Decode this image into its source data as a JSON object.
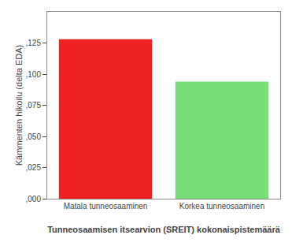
{
  "chart_data": {
    "type": "bar",
    "categories": [
      "Matala tunneosaaminen",
      "Korkea tunneosaaminen"
    ],
    "values": [
      0.128,
      0.094
    ],
    "colors": [
      "#ee2222",
      "#77dd77"
    ],
    "xlabel": "Tunneosaamisen itsearvion (SREIT) kokonaispistemäärä",
    "ylabel": "Kämmenten hikoilu (delta EDA)",
    "ylim": [
      0,
      0.15
    ],
    "yticks": [
      {
        "value": 0.0,
        "label": ",000"
      },
      {
        "value": 0.025,
        "label": ",025"
      },
      {
        "value": 0.05,
        "label": ",050"
      },
      {
        "value": 0.075,
        "label": ",075"
      },
      {
        "value": 0.1,
        "label": ",100"
      },
      {
        "value": 0.125,
        "label": ",125"
      }
    ],
    "grid": false
  }
}
